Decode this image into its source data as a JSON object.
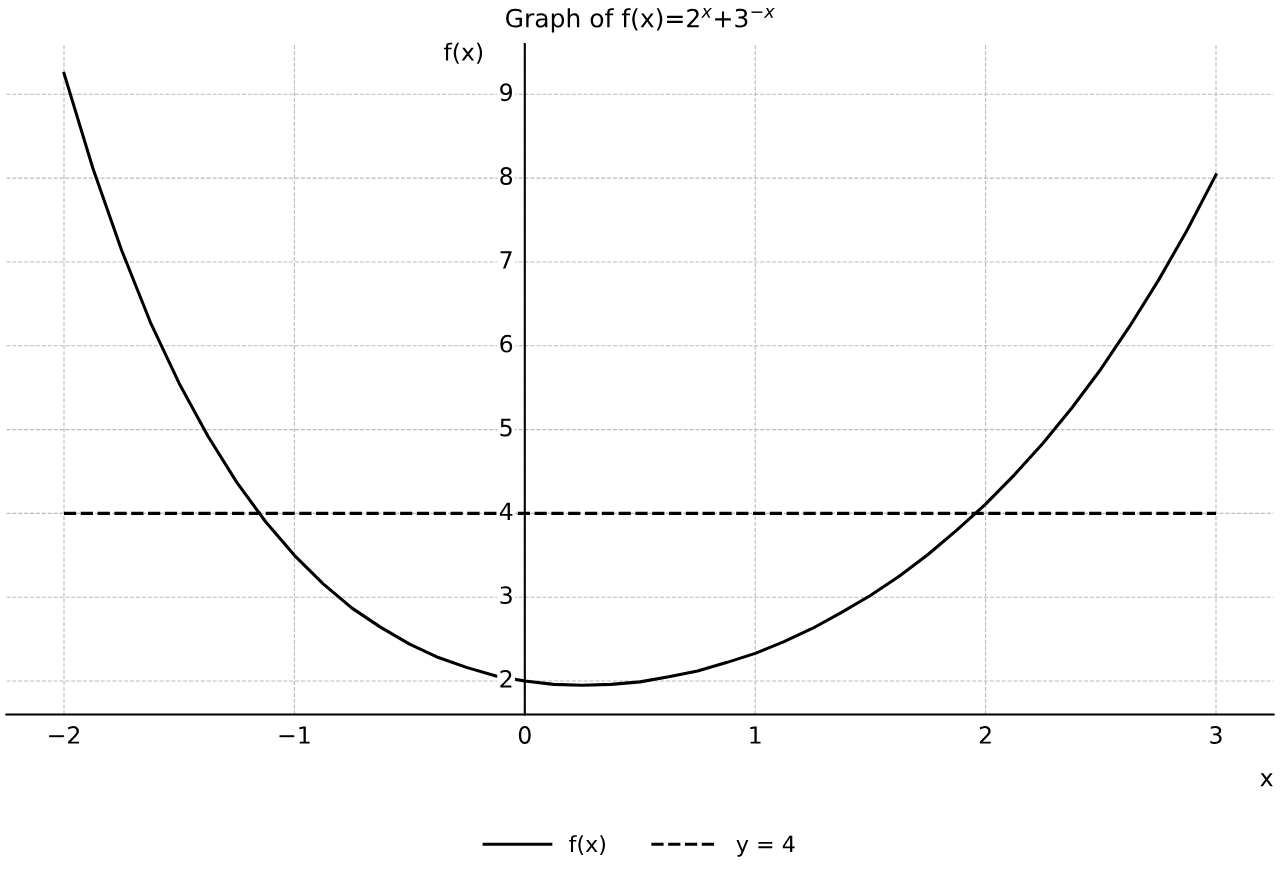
{
  "chart_data": {
    "type": "line",
    "title": "Graph of f(x)=2$^{x}$+3$^{−x}$",
    "xlabel": "x",
    "ylabel": "f(x)",
    "series": [
      {
        "name": "f(x)",
        "color": "#000000",
        "line_style": "solid",
        "x": [
          -2,
          -1.875,
          -1.75,
          -1.625,
          -1.5,
          -1.375,
          -1.25,
          -1.125,
          -1,
          -0.875,
          -0.75,
          -0.625,
          -0.5,
          -0.375,
          -0.25,
          -0.125,
          0,
          0.125,
          0.25,
          0.375,
          0.5,
          0.625,
          0.75,
          0.875,
          1,
          1.125,
          1.25,
          1.375,
          1.5,
          1.625,
          1.75,
          1.875,
          2,
          2.125,
          2.25,
          2.375,
          2.5,
          2.625,
          2.75,
          2.875,
          3
        ],
        "values": [
          9.25,
          8.12,
          7.14,
          6.28,
          5.55,
          4.92,
          4.37,
          3.9,
          3.5,
          3.16,
          2.87,
          2.64,
          2.44,
          2.28,
          2.16,
          2.06,
          2,
          1.96,
          1.95,
          1.96,
          1.99,
          2.05,
          2.12,
          2.22,
          2.33,
          2.47,
          2.63,
          2.82,
          3.02,
          3.25,
          3.51,
          3.8,
          4.11,
          4.46,
          4.84,
          5.26,
          5.72,
          6.23,
          6.78,
          7.38,
          8.04
        ]
      },
      {
        "name": "y = 4",
        "color": "#000000",
        "line_style": "dashed",
        "x": [
          -2,
          3
        ],
        "values": [
          4,
          4
        ]
      }
    ],
    "xlim": [
      -2.25,
      3.25
    ],
    "ylim": [
      1.6,
      9.6
    ],
    "xticks": [
      {
        "value": -2,
        "label": "−2"
      },
      {
        "value": -1,
        "label": "−1"
      },
      0,
      1,
      2,
      3
    ],
    "yticks": [
      2,
      3,
      4,
      5,
      6,
      7,
      8,
      9
    ],
    "grid": true,
    "legend": "bottom",
    "marker": "none"
  }
}
